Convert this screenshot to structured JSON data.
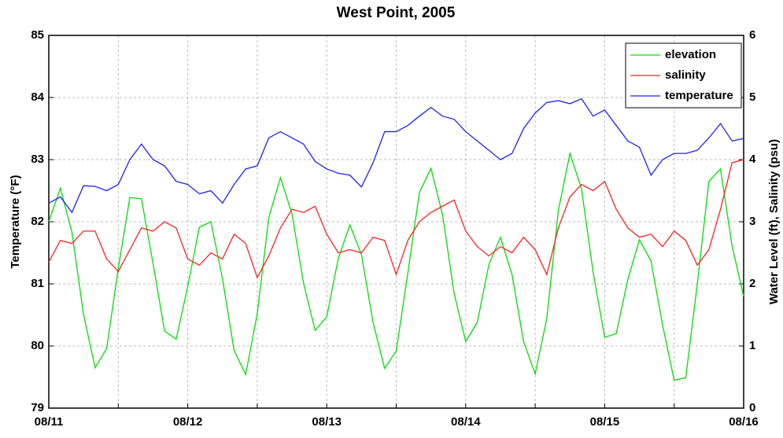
{
  "chart_data": {
    "type": "line",
    "title": "West Point, 2005",
    "ylabel": "Temperature (°F)",
    "y2label": "Water Level (ft), Salinity (psu)",
    "x": [
      0,
      2,
      4,
      6,
      8,
      10,
      12,
      14,
      16,
      18,
      20,
      22,
      24,
      26,
      28,
      30,
      32,
      34,
      36,
      38,
      40,
      42,
      44,
      46,
      48,
      50,
      52,
      54,
      56,
      58,
      60,
      62,
      64,
      66,
      68,
      70,
      72,
      74,
      76,
      78,
      80,
      82,
      84,
      86,
      88,
      90,
      92,
      94,
      96,
      98,
      100,
      102,
      104,
      106,
      108,
      110,
      112,
      114,
      116,
      118,
      120
    ],
    "xlim": [
      0,
      120
    ],
    "xticks": [
      {
        "value": 0,
        "label": "08/11"
      },
      {
        "value": 24,
        "label": "08/12"
      },
      {
        "value": 48,
        "label": "08/13"
      },
      {
        "value": 72,
        "label": "08/14"
      },
      {
        "value": 96,
        "label": "08/15"
      },
      {
        "value": 120,
        "label": "08/16"
      }
    ],
    "xminorticks": [
      12,
      36,
      60,
      84,
      108
    ],
    "ylim": [
      79,
      85
    ],
    "yticks": [
      79,
      80,
      81,
      82,
      83,
      84,
      85
    ],
    "y2lim": [
      0,
      6
    ],
    "y2ticks": [
      0,
      1,
      2,
      3,
      4,
      5,
      6
    ],
    "grid": true,
    "legend": "upper right",
    "series": [
      {
        "name": "elevation",
        "color": "#00e000",
        "axis": "y2",
        "values": [
          3.0,
          3.54,
          2.83,
          1.51,
          0.65,
          0.96,
          2.25,
          3.39,
          3.37,
          2.33,
          1.24,
          1.11,
          1.96,
          2.91,
          3.0,
          2.08,
          0.93,
          0.54,
          1.52,
          3.07,
          3.71,
          3.13,
          2.01,
          1.25,
          1.47,
          2.41,
          2.95,
          2.47,
          1.38,
          0.64,
          0.92,
          2.17,
          3.47,
          3.86,
          3.11,
          1.85,
          1.07,
          1.38,
          2.31,
          2.75,
          2.15,
          1.07,
          0.55,
          1.44,
          3.18,
          4.1,
          3.53,
          2.19,
          1.14,
          1.2,
          2.07,
          2.71,
          2.37,
          1.34,
          0.45,
          0.49,
          2.0,
          3.65,
          3.85,
          2.61,
          1.8
        ]
      },
      {
        "name": "salinity",
        "color": "#ff2020",
        "axis": "y2",
        "values": [
          2.35,
          2.7,
          2.65,
          2.85,
          2.85,
          2.4,
          2.2,
          2.55,
          2.9,
          2.85,
          3.0,
          2.9,
          2.4,
          2.3,
          2.5,
          2.4,
          2.8,
          2.65,
          2.1,
          2.45,
          2.9,
          3.2,
          3.15,
          3.25,
          2.8,
          2.5,
          2.55,
          2.5,
          2.75,
          2.7,
          2.15,
          2.7,
          3.0,
          3.15,
          3.25,
          3.35,
          2.85,
          2.6,
          2.45,
          2.6,
          2.5,
          2.75,
          2.55,
          2.15,
          2.9,
          3.4,
          3.6,
          3.5,
          3.65,
          3.2,
          2.9,
          2.75,
          2.8,
          2.6,
          2.85,
          2.7,
          2.3,
          2.55,
          3.2,
          3.95,
          4.0
        ]
      },
      {
        "name": "temperature",
        "color": "#2020ff",
        "axis": "y",
        "values": [
          82.3,
          82.4,
          82.15,
          82.58,
          82.57,
          82.5,
          82.6,
          83.0,
          83.25,
          83.0,
          82.9,
          82.65,
          82.6,
          82.45,
          82.5,
          82.3,
          82.6,
          82.85,
          82.9,
          83.35,
          83.45,
          83.35,
          83.25,
          82.97,
          82.85,
          82.78,
          82.75,
          82.56,
          82.95,
          83.45,
          83.45,
          83.55,
          83.7,
          83.84,
          83.7,
          83.65,
          83.45,
          83.3,
          83.15,
          83.0,
          83.1,
          83.5,
          83.75,
          83.92,
          83.95,
          83.9,
          83.98,
          83.7,
          83.8,
          83.55,
          83.3,
          83.2,
          82.75,
          83.0,
          83.1,
          83.1,
          83.15,
          83.35,
          83.58,
          83.3,
          83.34
        ]
      }
    ]
  }
}
